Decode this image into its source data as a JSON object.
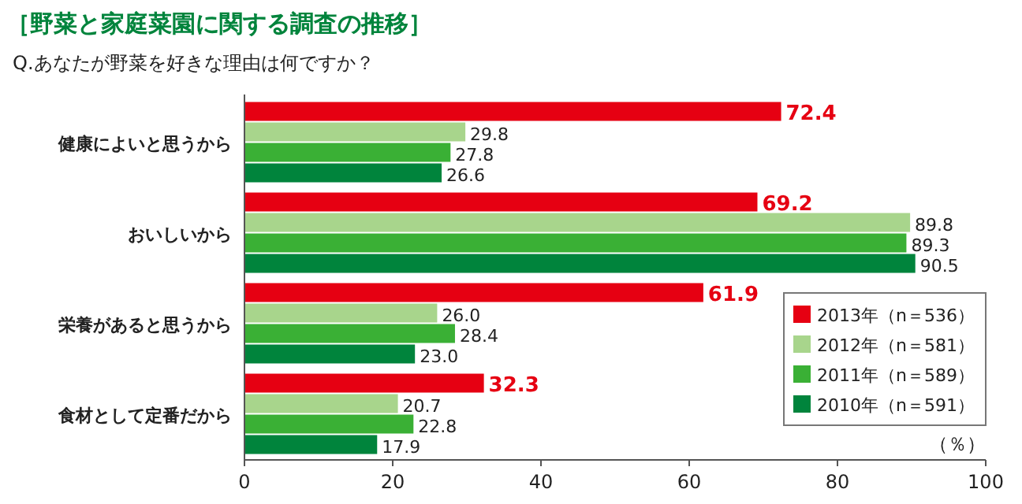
{
  "chart_data": {
    "type": "bar",
    "orientation": "horizontal",
    "title": "［野菜と家庭菜園に関する調査の推移］",
    "subtitle": "Q.あなたが野菜を好きな理由は何ですか？",
    "xlabel": "（％）",
    "categories": [
      "健康によいと思うから",
      "おいしいから",
      "栄養があると思うから",
      "食材として定番だから"
    ],
    "series": [
      {
        "name": "2013年（n＝536）",
        "color": "#e60012",
        "values": [
          72.4,
          69.2,
          61.9,
          32.3
        ],
        "value_labels": [
          "72.4",
          "69.2",
          "61.9",
          "32.3"
        ]
      },
      {
        "name": "2012年（n＝581）",
        "color": "#a8d58c",
        "values": [
          29.8,
          89.8,
          26.0,
          20.7
        ],
        "value_labels": [
          "29.8",
          "89.8",
          "26.0",
          "20.7"
        ]
      },
      {
        "name": "2011年（n＝589）",
        "color": "#3ab035",
        "values": [
          27.8,
          89.3,
          28.4,
          22.8
        ],
        "value_labels": [
          "27.8",
          "89.3",
          "28.4",
          "22.8"
        ]
      },
      {
        "name": "2010年（n＝591）",
        "color": "#00843c",
        "values": [
          26.6,
          90.5,
          23.0,
          17.9
        ],
        "value_labels": [
          "26.6",
          "90.5",
          "23.0",
          "17.9"
        ]
      }
    ],
    "xlim": [
      0,
      100
    ],
    "xticks": [
      0,
      20,
      40,
      60,
      80,
      100
    ],
    "legend": "bottom right"
  }
}
